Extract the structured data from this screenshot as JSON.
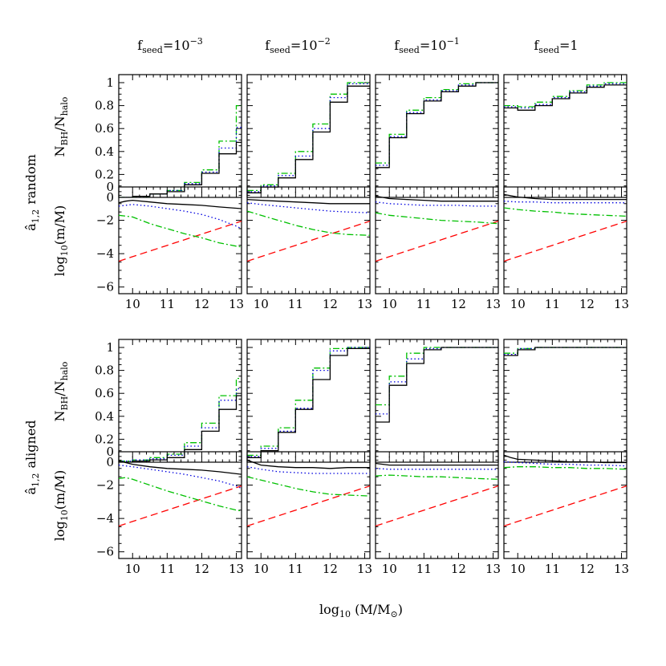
{
  "figure": {
    "column_titles": [
      {
        "base": "f",
        "sub": "seed",
        "eq": "=10",
        "sup": "−3"
      },
      {
        "base": "f",
        "sub": "seed",
        "eq": "=10",
        "sup": "−2"
      },
      {
        "base": "f",
        "sub": "seed",
        "eq": "=10",
        "sup": "−1"
      },
      {
        "base": "f",
        "sub": "seed",
        "eq": "=1",
        "sup": ""
      }
    ],
    "row_groups": [
      {
        "label_base": "â",
        "label_sub": "1,2",
        "label_word": "random"
      },
      {
        "label_base": "â",
        "label_sub": "1,2",
        "label_word": "aligned"
      }
    ],
    "ylabel_fraction": {
      "base1": "N",
      "sub1": "BH",
      "slash": "/",
      "base2": "N",
      "sub2": "halo"
    },
    "ylabel_ratio": {
      "base": "log",
      "sub": "10",
      "rest": "(m/M)"
    },
    "xlabel": {
      "base": "log",
      "sub": "10",
      "rest": " (M/M",
      "sub2": "⊙",
      "close": ")"
    },
    "xticks": [
      "10",
      "11",
      "12",
      "13"
    ],
    "yticks_fraction": [
      "0",
      "0.2",
      "0.4",
      "0.6",
      "0.8",
      "1"
    ],
    "yticks_ratio": [
      "0",
      "−2",
      "−4",
      "−6"
    ]
  },
  "chart_data": {
    "type": "line",
    "xlim": [
      9.6,
      13.15
    ],
    "ylim_fraction": [
      0,
      1.07
    ],
    "ylim_ratio": [
      -6.4,
      0
    ],
    "bin_edges": [
      9.6,
      10.0,
      10.5,
      11.0,
      11.5,
      12.0,
      12.5,
      13.0,
      13.15
    ],
    "colors": {
      "black": "#000000",
      "blue": "#0000e0",
      "green": "#00c000",
      "red": "#ff0000"
    },
    "reference_line_red": {
      "x": [
        9.6,
        13.15
      ],
      "y": [
        -4.45,
        -2.05
      ]
    },
    "fraction_panels": [
      [
        {
          "black": [
            0.0,
            0.01,
            0.03,
            0.05,
            0.11,
            0.21,
            0.38,
            0.48
          ],
          "blue": [
            0.0,
            0.01,
            0.03,
            0.06,
            0.12,
            0.22,
            0.43,
            0.61
          ],
          "green": [
            0.0,
            0.01,
            0.03,
            0.06,
            0.13,
            0.24,
            0.49,
            0.8
          ]
        },
        {
          "black": [
            0.04,
            0.09,
            0.17,
            0.33,
            0.57,
            0.83,
            0.97,
            0.97
          ],
          "blue": [
            0.05,
            0.1,
            0.19,
            0.36,
            0.6,
            0.87,
            0.99,
            0.99
          ],
          "green": [
            0.06,
            0.11,
            0.21,
            0.4,
            0.64,
            0.9,
            1.0,
            1.0
          ]
        },
        {
          "black": [
            0.26,
            0.52,
            0.73,
            0.84,
            0.92,
            0.97,
            1.0,
            1.0
          ],
          "blue": [
            0.28,
            0.53,
            0.74,
            0.85,
            0.93,
            0.98,
            1.0,
            1.0
          ],
          "green": [
            0.3,
            0.55,
            0.76,
            0.87,
            0.94,
            0.99,
            1.0,
            1.0
          ]
        },
        {
          "black": [
            0.78,
            0.76,
            0.8,
            0.86,
            0.91,
            0.96,
            0.98,
            0.98
          ],
          "blue": [
            0.79,
            0.78,
            0.81,
            0.87,
            0.92,
            0.97,
            0.99,
            0.99
          ],
          "green": [
            0.8,
            0.79,
            0.83,
            0.88,
            0.93,
            0.98,
            1.0,
            1.0
          ]
        }
      ],
      [
        {
          "black": [
            0.0,
            0.01,
            0.02,
            0.04,
            0.11,
            0.27,
            0.46,
            0.58
          ],
          "blue": [
            0.01,
            0.02,
            0.03,
            0.06,
            0.14,
            0.3,
            0.54,
            0.64
          ],
          "green": [
            0.01,
            0.02,
            0.04,
            0.07,
            0.17,
            0.34,
            0.58,
            0.73
          ]
        },
        {
          "black": [
            0.04,
            0.1,
            0.26,
            0.46,
            0.72,
            0.93,
            0.99,
            0.99
          ],
          "blue": [
            0.05,
            0.12,
            0.27,
            0.47,
            0.8,
            0.97,
            1.0,
            1.0
          ],
          "green": [
            0.06,
            0.14,
            0.3,
            0.54,
            0.82,
            0.99,
            1.0,
            1.0
          ]
        },
        {
          "black": [
            0.35,
            0.67,
            0.86,
            0.98,
            1.0,
            1.0,
            1.0,
            1.0
          ],
          "blue": [
            0.42,
            0.7,
            0.9,
            0.99,
            1.0,
            1.0,
            1.0,
            1.0
          ],
          "green": [
            0.5,
            0.75,
            0.95,
            1.0,
            1.0,
            1.0,
            1.0,
            1.0
          ]
        },
        {
          "black": [
            0.93,
            0.98,
            1.0,
            1.0,
            1.0,
            1.0,
            1.0,
            1.0
          ],
          "blue": [
            0.94,
            0.99,
            1.0,
            1.0,
            1.0,
            1.0,
            1.0,
            1.0
          ],
          "green": [
            0.95,
            0.99,
            1.0,
            1.0,
            1.0,
            1.0,
            1.0,
            1.0
          ]
        }
      ]
    ],
    "ratio_panels": [
      [
        {
          "black": {
            "x": [
              9.6,
              9.8,
              10.0,
              10.5,
              11.0,
              11.5,
              12.0,
              12.5,
              13.15
            ],
            "y": [
              -0.95,
              -0.85,
              -0.8,
              -0.9,
              -1.0,
              -1.05,
              -1.1,
              -1.2,
              -1.3
            ]
          },
          "blue": {
            "x": [
              9.6,
              10.0,
              10.5,
              11.0,
              11.5,
              12.0,
              12.5,
              13.0,
              13.15
            ],
            "y": [
              -1.15,
              -1.05,
              -1.15,
              -1.3,
              -1.45,
              -1.65,
              -1.95,
              -2.35,
              -2.5
            ]
          },
          "green": {
            "x": [
              9.6,
              10.0,
              10.5,
              11.0,
              11.5,
              12.0,
              12.5,
              13.0,
              13.15
            ],
            "y": [
              -1.7,
              -1.8,
              -2.2,
              -2.5,
              -2.8,
              -3.05,
              -3.35,
              -3.55,
              -3.6
            ]
          }
        },
        {
          "black": {
            "x": [
              9.6,
              10.0,
              10.5,
              11.0,
              11.5,
              12.0,
              12.5,
              13.15
            ],
            "y": [
              -0.75,
              -0.8,
              -0.85,
              -0.9,
              -0.95,
              -1.0,
              -1.0,
              -1.0
            ]
          },
          "blue": {
            "x": [
              9.6,
              10.0,
              10.5,
              11.0,
              11.5,
              12.0,
              12.5,
              13.15
            ],
            "y": [
              -0.95,
              -1.05,
              -1.15,
              -1.25,
              -1.35,
              -1.45,
              -1.5,
              -1.55
            ]
          },
          "green": {
            "x": [
              9.6,
              10.0,
              10.5,
              11.0,
              11.5,
              12.0,
              12.5,
              13.15
            ],
            "y": [
              -1.45,
              -1.7,
              -2.0,
              -2.3,
              -2.55,
              -2.75,
              -2.85,
              -2.9
            ]
          }
        },
        {
          "black": {
            "x": [
              9.6,
              10.0,
              10.5,
              11.0,
              11.5,
              12.0,
              12.5,
              13.15
            ],
            "y": [
              -0.55,
              -0.7,
              -0.75,
              -0.8,
              -0.85,
              -0.85,
              -0.85,
              -0.85
            ]
          },
          "blue": {
            "x": [
              9.6,
              10.0,
              10.5,
              11.0,
              11.5,
              12.0,
              12.5,
              13.15
            ],
            "y": [
              -0.9,
              -1.0,
              -1.05,
              -1.1,
              -1.1,
              -1.1,
              -1.15,
              -1.15
            ]
          },
          "green": {
            "x": [
              9.6,
              10.0,
              10.5,
              11.0,
              11.5,
              12.0,
              12.5,
              13.15
            ],
            "y": [
              -1.55,
              -1.7,
              -1.8,
              -1.9,
              -2.0,
              -2.05,
              -2.1,
              -2.2
            ]
          }
        },
        {
          "black": {
            "x": [
              9.6,
              10.0,
              10.5,
              11.0,
              11.5,
              12.0,
              12.5,
              13.15
            ],
            "y": [
              -0.45,
              -0.6,
              -0.7,
              -0.75,
              -0.75,
              -0.75,
              -0.75,
              -0.75
            ]
          },
          "blue": {
            "x": [
              9.6,
              10.0,
              10.5,
              11.0,
              11.5,
              12.0,
              12.5,
              13.15
            ],
            "y": [
              -0.85,
              -0.9,
              -0.9,
              -0.95,
              -0.95,
              -0.95,
              -0.95,
              -0.95
            ]
          },
          "green": {
            "x": [
              9.6,
              10.0,
              10.5,
              11.0,
              11.5,
              12.0,
              12.5,
              13.15
            ],
            "y": [
              -1.25,
              -1.35,
              -1.45,
              -1.5,
              -1.6,
              -1.65,
              -1.7,
              -1.75
            ]
          }
        }
      ],
      [
        {
          "black": {
            "x": [
              9.6,
              9.8,
              10.0,
              10.5,
              11.0,
              11.5,
              12.0,
              12.5,
              13.15
            ],
            "y": [
              -0.55,
              -0.65,
              -0.75,
              -0.9,
              -1.0,
              -1.05,
              -1.1,
              -1.2,
              -1.35
            ]
          },
          "blue": {
            "x": [
              9.6,
              10.0,
              10.5,
              11.0,
              11.5,
              12.0,
              12.5,
              13.0,
              13.15
            ],
            "y": [
              -0.8,
              -0.9,
              -1.05,
              -1.2,
              -1.35,
              -1.55,
              -1.75,
              -2.05,
              -2.2
            ]
          },
          "green": {
            "x": [
              9.6,
              9.8,
              10.0,
              10.5,
              11.0,
              11.5,
              12.0,
              12.5,
              13.0,
              13.15
            ],
            "y": [
              -1.6,
              -1.55,
              -1.65,
              -2.0,
              -2.35,
              -2.65,
              -2.95,
              -3.25,
              -3.5,
              -3.55
            ]
          }
        },
        {
          "black": {
            "x": [
              9.6,
              10.0,
              10.5,
              11.0,
              11.5,
              12.0,
              12.5,
              13.15
            ],
            "y": [
              -0.5,
              -0.8,
              -0.9,
              -0.95,
              -0.95,
              -1.0,
              -0.95,
              -0.95
            ]
          },
          "blue": {
            "x": [
              9.6,
              10.0,
              10.5,
              11.0,
              11.5,
              12.0,
              12.5,
              13.15
            ],
            "y": [
              -0.9,
              -1.05,
              -1.2,
              -1.25,
              -1.3,
              -1.3,
              -1.3,
              -1.3
            ]
          },
          "green": {
            "x": [
              9.6,
              10.0,
              10.5,
              11.0,
              11.5,
              12.0,
              12.5,
              13.15
            ],
            "y": [
              -1.5,
              -1.7,
              -1.95,
              -2.2,
              -2.4,
              -2.55,
              -2.6,
              -2.65
            ]
          }
        },
        {
          "black": {
            "x": [
              9.6,
              10.0,
              10.5,
              11.0,
              11.5,
              12.0,
              12.5,
              13.15
            ],
            "y": [
              -0.7,
              -0.8,
              -0.8,
              -0.8,
              -0.8,
              -0.8,
              -0.8,
              -0.8
            ]
          },
          "blue": {
            "x": [
              9.6,
              10.0,
              10.5,
              11.0,
              11.5,
              12.0,
              12.5,
              13.15
            ],
            "y": [
              -1.0,
              -1.05,
              -1.05,
              -1.05,
              -1.05,
              -1.05,
              -1.05,
              -1.05
            ]
          },
          "green": {
            "x": [
              9.6,
              10.0,
              10.5,
              11.0,
              11.5,
              12.0,
              12.5,
              13.15
            ],
            "y": [
              -1.45,
              -1.4,
              -1.45,
              -1.5,
              -1.5,
              -1.55,
              -1.6,
              -1.65
            ]
          }
        },
        {
          "black": {
            "x": [
              9.6,
              9.8,
              10.0,
              10.5,
              11.0,
              11.5,
              12.0,
              12.5,
              13.15
            ],
            "y": [
              -0.2,
              -0.35,
              -0.45,
              -0.5,
              -0.55,
              -0.6,
              -0.6,
              -0.65,
              -0.65
            ]
          },
          "blue": {
            "x": [
              9.6,
              10.0,
              10.5,
              11.0,
              11.5,
              12.0,
              12.5,
              13.15
            ],
            "y": [
              -0.6,
              -0.65,
              -0.7,
              -0.75,
              -0.75,
              -0.8,
              -0.8,
              -0.85
            ]
          },
          "green": {
            "x": [
              9.6,
              10.0,
              10.5,
              11.0,
              11.5,
              12.0,
              12.5,
              13.15
            ],
            "y": [
              -0.95,
              -0.9,
              -0.9,
              -0.95,
              -0.95,
              -1.0,
              -1.0,
              -1.05
            ]
          }
        }
      ]
    ]
  }
}
